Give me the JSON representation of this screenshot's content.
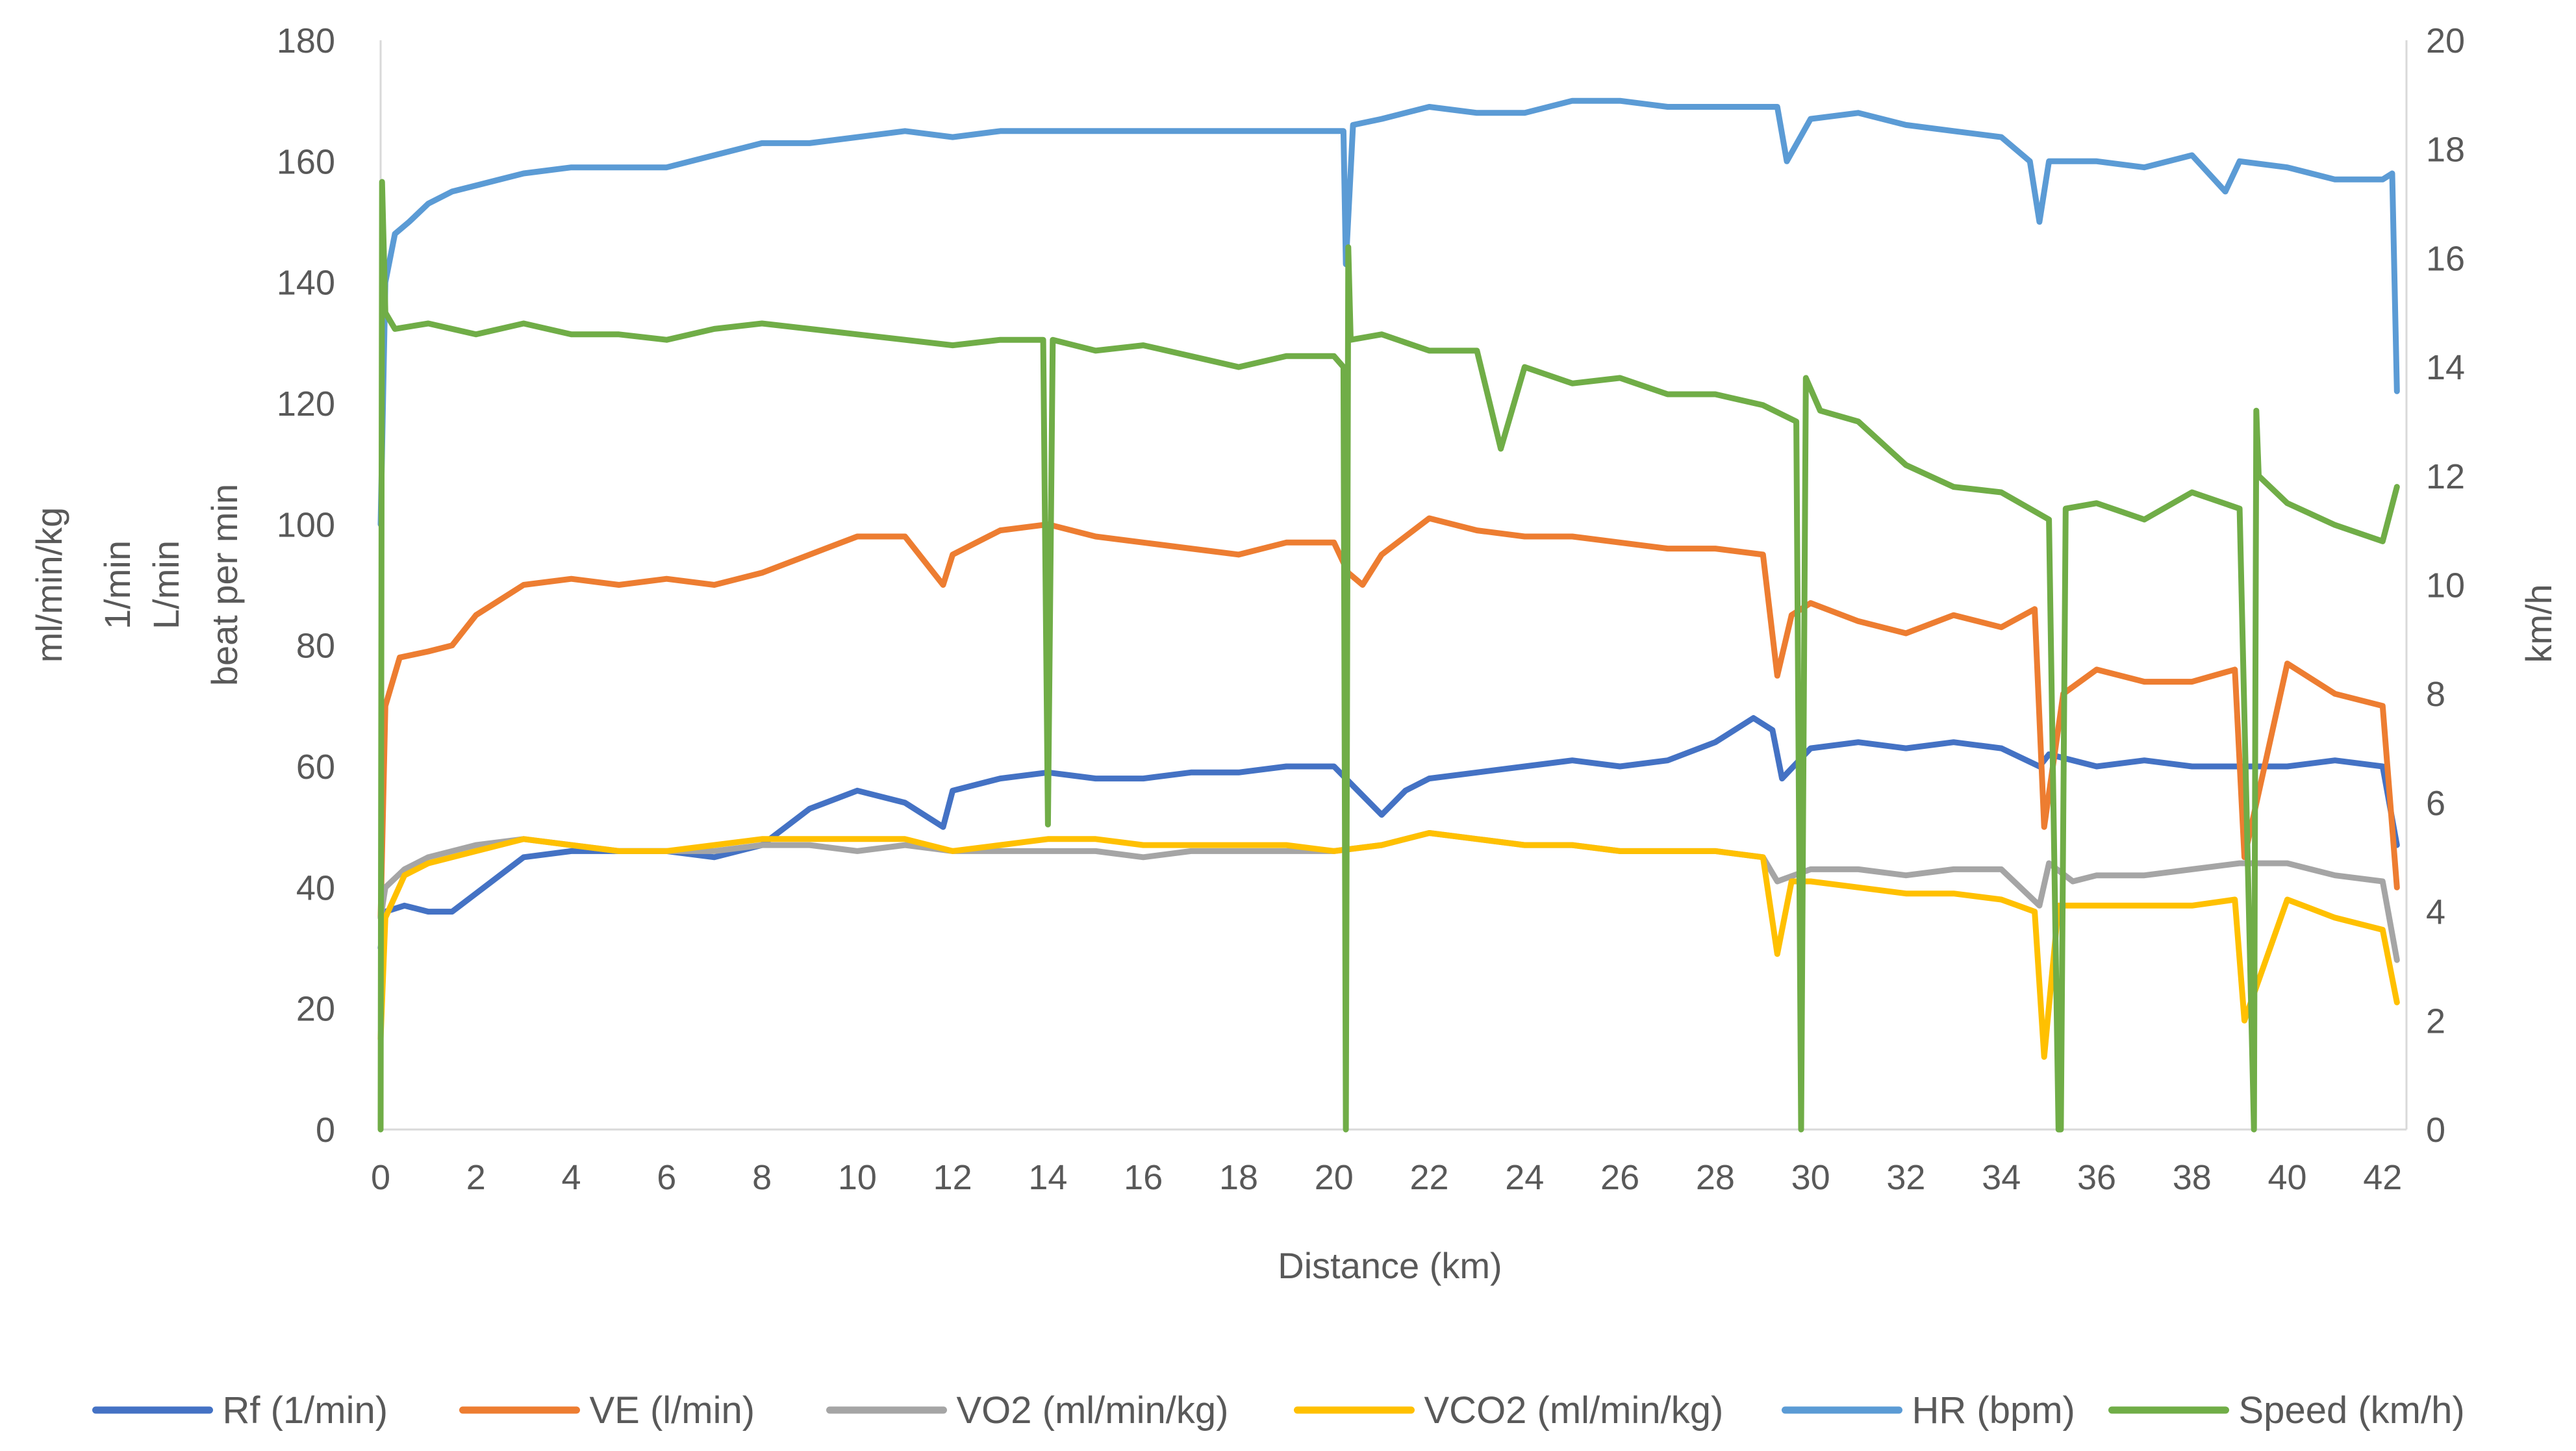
{
  "chart_data": {
    "type": "line",
    "title": "",
    "xlabel": "Distance (km)",
    "ylabel_left": [
      "ml/min/kg",
      "1/min",
      "L/min",
      "beat per min"
    ],
    "ylabel_right": "km/h",
    "xlim": [
      0,
      42.5
    ],
    "ylim_left": [
      0,
      180
    ],
    "ylim_right": [
      0,
      20
    ],
    "x_ticks": [
      0,
      2,
      4,
      6,
      8,
      10,
      12,
      14,
      16,
      18,
      20,
      22,
      24,
      26,
      28,
      30,
      32,
      34,
      36,
      38,
      40,
      42
    ],
    "y_left_ticks": [
      0,
      20,
      40,
      60,
      80,
      100,
      120,
      140,
      160,
      180
    ],
    "y_right_ticks": [
      0,
      2,
      4,
      6,
      8,
      10,
      12,
      14,
      16,
      18,
      20
    ],
    "grid": "horizontal-none",
    "legend_position": "bottom",
    "series": [
      {
        "name": "Rf (1/min)",
        "axis": "left",
        "color": "#4472C4",
        "x": [
          0,
          0.1,
          0.5,
          1,
          1.5,
          2,
          3,
          4,
          5,
          6,
          7,
          8,
          9,
          10,
          11,
          11.8,
          12,
          13,
          14,
          15,
          16,
          17,
          18,
          19,
          20,
          20.5,
          21,
          21.5,
          22,
          23,
          24,
          25,
          26,
          27,
          28,
          28.8,
          29.2,
          29.4,
          30,
          31,
          32,
          33,
          34,
          34.8,
          35,
          36,
          37,
          38,
          39,
          40,
          41,
          42,
          42.3
        ],
        "y": [
          30,
          36,
          37,
          36,
          36,
          39,
          45,
          46,
          46,
          46,
          45,
          47,
          53,
          56,
          54,
          50,
          56,
          58,
          59,
          58,
          58,
          59,
          59,
          60,
          60,
          56,
          52,
          56,
          58,
          59,
          60,
          61,
          60,
          61,
          64,
          68,
          66,
          58,
          63,
          64,
          63,
          64,
          63,
          60,
          62,
          60,
          61,
          60,
          60,
          60,
          61,
          60,
          47
        ]
      },
      {
        "name": "VE (l/min)",
        "axis": "left",
        "color": "#ED7D31",
        "x": [
          0,
          0.1,
          0.4,
          1,
          1.5,
          2,
          3,
          4,
          5,
          6,
          7,
          8,
          9,
          10,
          11,
          11.8,
          12,
          13,
          14,
          15,
          16,
          17,
          18,
          19,
          20,
          20.3,
          20.6,
          21,
          22,
          23,
          24,
          25,
          26,
          27,
          28,
          29,
          29.3,
          29.6,
          30,
          31,
          32,
          33,
          34,
          34.7,
          34.9,
          35.3,
          36,
          37,
          38,
          38.9,
          39.1,
          40,
          41,
          42,
          42.3
        ],
        "y": [
          35,
          70,
          78,
          79,
          80,
          85,
          90,
          91,
          90,
          91,
          90,
          92,
          95,
          98,
          98,
          90,
          95,
          99,
          100,
          98,
          97,
          96,
          95,
          97,
          97,
          92,
          90,
          95,
          101,
          99,
          98,
          98,
          97,
          96,
          96,
          95,
          75,
          85,
          87,
          84,
          82,
          85,
          83,
          86,
          50,
          72,
          76,
          74,
          74,
          76,
          45,
          77,
          72,
          70,
          40
        ]
      },
      {
        "name": "VO2 (ml/min/kg)",
        "axis": "left",
        "color": "#A5A5A5",
        "x": [
          0,
          0.1,
          0.5,
          1,
          2,
          3,
          4,
          5,
          6,
          7,
          8,
          9,
          10,
          11,
          12,
          13,
          14,
          15,
          16,
          17,
          18,
          19,
          20,
          21,
          22,
          23,
          24,
          25,
          26,
          27,
          28,
          29,
          29.3,
          30,
          31,
          32,
          33,
          34,
          34.8,
          35,
          35.5,
          36,
          37,
          38,
          39,
          40,
          41,
          42,
          42.3
        ],
        "y": [
          35,
          40,
          43,
          45,
          47,
          48,
          47,
          46,
          46,
          46,
          47,
          47,
          46,
          47,
          46,
          46,
          46,
          46,
          45,
          46,
          46,
          46,
          46,
          47,
          49,
          48,
          47,
          47,
          46,
          46,
          46,
          45,
          41,
          43,
          43,
          42,
          43,
          43,
          37,
          44,
          41,
          42,
          42,
          43,
          44,
          44,
          42,
          41,
          28
        ]
      },
      {
        "name": "VCO2 (ml/min/kg)",
        "axis": "left",
        "color": "#FFC000",
        "x": [
          0,
          0.1,
          0.5,
          1,
          2,
          3,
          4,
          5,
          6,
          7,
          8,
          9,
          10,
          11,
          12,
          13,
          14,
          15,
          16,
          17,
          18,
          19,
          20,
          21,
          22,
          23,
          24,
          25,
          26,
          27,
          28,
          29,
          29.3,
          29.6,
          30,
          31,
          32,
          33,
          34,
          34.7,
          34.9,
          35.2,
          36,
          37,
          38,
          38.9,
          39.1,
          40,
          41,
          42,
          42.3
        ],
        "y": [
          15,
          35,
          42,
          44,
          46,
          48,
          47,
          46,
          46,
          47,
          48,
          48,
          48,
          48,
          46,
          47,
          48,
          48,
          47,
          47,
          47,
          47,
          46,
          47,
          49,
          48,
          47,
          47,
          46,
          46,
          46,
          45,
          29,
          41,
          41,
          40,
          39,
          39,
          38,
          36,
          12,
          37,
          37,
          37,
          37,
          38,
          18,
          38,
          35,
          33,
          21
        ]
      },
      {
        "name": "HR (bpm)",
        "axis": "left",
        "color": "#5B9BD5",
        "x": [
          0,
          0.1,
          0.3,
          0.6,
          1,
          1.5,
          2,
          3,
          4,
          5,
          6,
          7,
          8,
          9,
          10,
          11,
          12,
          13,
          14,
          15,
          16,
          17,
          18,
          19,
          20,
          20.2,
          20.25,
          20.4,
          21,
          22,
          23,
          24,
          25,
          26,
          27,
          28,
          29,
          29.3,
          29.5,
          30,
          31,
          32,
          33,
          34,
          34.6,
          34.8,
          35,
          36,
          37,
          38,
          38.7,
          39,
          40,
          41,
          42,
          42.2,
          42.3
        ],
        "y": [
          100,
          140,
          148,
          150,
          153,
          155,
          156,
          158,
          159,
          159,
          159,
          161,
          163,
          163,
          164,
          165,
          164,
          165,
          165,
          165,
          165,
          165,
          165,
          165,
          165,
          165,
          143,
          166,
          167,
          169,
          168,
          168,
          170,
          170,
          169,
          169,
          169,
          169,
          160,
          167,
          168,
          166,
          165,
          164,
          160,
          150,
          160,
          160,
          159,
          161,
          155,
          160,
          159,
          157,
          157,
          158,
          122
        ]
      },
      {
        "name": "Speed (km/h)",
        "axis": "right",
        "color": "#70AD47",
        "x": [
          0,
          0.03,
          0.1,
          0.3,
          1,
          2,
          3,
          4,
          5,
          6,
          7,
          8,
          9,
          10,
          11,
          12,
          13,
          13.9,
          14.0,
          14.1,
          15,
          16,
          17,
          18,
          19,
          20,
          20.2,
          20.25,
          20.3,
          20.35,
          21,
          22,
          23,
          23.5,
          24,
          25,
          26,
          27,
          28,
          29,
          29.7,
          29.8,
          29.9,
          30.2,
          31,
          32,
          33,
          34,
          35,
          35.2,
          35.25,
          35.35,
          36,
          37,
          38,
          39,
          39.3,
          39.35,
          39.4,
          40,
          41,
          42,
          42.3
        ],
        "y": [
          0,
          17.4,
          15,
          14.7,
          14.8,
          14.6,
          14.8,
          14.6,
          14.6,
          14.5,
          14.7,
          14.8,
          14.7,
          14.6,
          14.5,
          14.4,
          14.5,
          14.5,
          5.6,
          14.5,
          14.3,
          14.4,
          14.2,
          14.0,
          14.2,
          14.2,
          14.0,
          0,
          16.2,
          14.5,
          14.6,
          14.3,
          14.3,
          12.5,
          14.0,
          13.7,
          13.8,
          13.5,
          13.5,
          13.3,
          13.0,
          0,
          13.8,
          13.2,
          13.0,
          12.2,
          11.8,
          11.7,
          11.2,
          0,
          0,
          11.4,
          11.5,
          11.2,
          11.7,
          11.4,
          0,
          13.2,
          12.0,
          11.5,
          11.1,
          10.8,
          11.8
        ]
      }
    ]
  }
}
